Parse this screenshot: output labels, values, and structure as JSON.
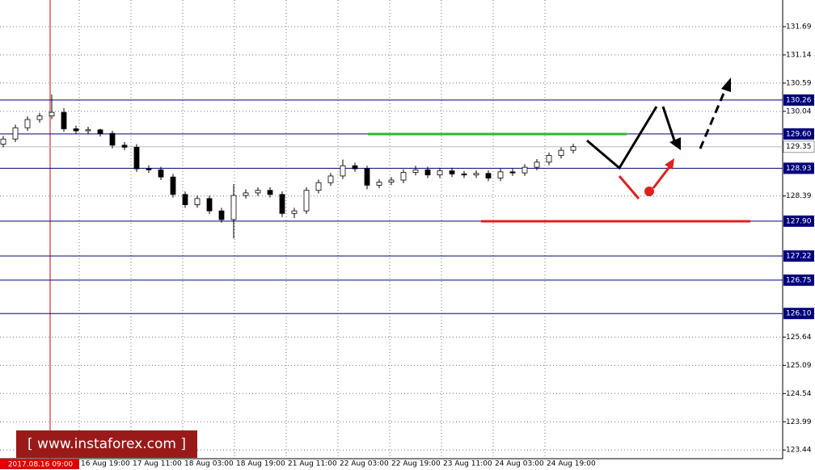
{
  "chart_data": {
    "type": "candlestick",
    "ylim": [
      123.27,
      132.21
    ],
    "yticks": [
      131.69,
      131.14,
      130.59,
      130.04,
      128.39,
      125.64,
      125.09,
      124.54,
      123.99,
      123.44
    ],
    "grid": true,
    "xlabels": [
      "11:0",
      "16 Aug 19:00",
      "17 Aug 11:00",
      "18 Aug 03:00",
      "18 Aug 19:00",
      "21 Aug 11:00",
      "22 Aug 03:00",
      "22 Aug 19:00",
      "23 Aug 11:00",
      "24 Aug 03:00",
      "24 Aug 19:00"
    ],
    "marker_label": "2017.08.16 09:00",
    "watermark": "[ www.instaforex.com ]",
    "current_price": 129.35,
    "levels": [
      130.26,
      {
        "value": 129.6,
        "label": "129.60"
      },
      128.93,
      {
        "value": 127.9,
        "label": "127.90"
      },
      127.22,
      126.75,
      {
        "value": 126.1,
        "label": "126.10"
      }
    ],
    "open": [
      129.4,
      129.5,
      129.72,
      129.88,
      129.95,
      130.02,
      129.7,
      129.66,
      129.68,
      129.61,
      129.38,
      129.34,
      128.92,
      128.9,
      128.76,
      128.42,
      128.22,
      128.34,
      128.1,
      127.93,
      128.4,
      128.45,
      128.5,
      128.42,
      128.05,
      128.1,
      128.5,
      128.65,
      128.78,
      128.98,
      128.92,
      128.6,
      128.66,
      128.7,
      128.85,
      128.9,
      128.8,
      128.88,
      128.82,
      128.8,
      128.83,
      128.74,
      128.86,
      128.84,
      128.95,
      129.05,
      129.18,
      129.28
    ],
    "close": [
      129.5,
      129.72,
      129.88,
      129.95,
      130.02,
      129.7,
      129.66,
      129.68,
      129.61,
      129.38,
      129.34,
      128.92,
      128.9,
      128.76,
      128.42,
      128.22,
      128.34,
      128.1,
      127.93,
      128.4,
      128.45,
      128.5,
      128.42,
      128.05,
      128.1,
      128.5,
      128.65,
      128.78,
      128.98,
      128.92,
      128.6,
      128.66,
      128.7,
      128.85,
      128.9,
      128.8,
      128.88,
      128.82,
      128.8,
      128.83,
      128.74,
      128.86,
      128.84,
      128.95,
      129.05,
      129.18,
      129.28,
      129.35
    ],
    "high": [
      129.56,
      129.78,
      129.94,
      130.01,
      130.37,
      130.1,
      129.76,
      129.74,
      129.7,
      129.66,
      129.44,
      129.4,
      128.99,
      128.96,
      128.82,
      128.48,
      128.4,
      128.4,
      128.16,
      128.62,
      128.52,
      128.56,
      128.56,
      128.48,
      128.16,
      128.56,
      128.71,
      128.84,
      129.1,
      129.04,
      128.98,
      128.72,
      128.76,
      128.91,
      128.98,
      128.96,
      128.94,
      128.94,
      128.88,
      128.89,
      128.89,
      128.92,
      128.92,
      129.01,
      129.11,
      129.24,
      129.34,
      129.41
    ],
    "low": [
      129.34,
      129.44,
      129.66,
      129.82,
      129.89,
      129.64,
      129.6,
      129.6,
      129.55,
      129.32,
      129.28,
      128.86,
      128.84,
      128.7,
      128.36,
      128.16,
      128.16,
      128.04,
      127.87,
      127.56,
      128.34,
      128.39,
      128.36,
      127.98,
      127.96,
      128.04,
      128.44,
      128.59,
      128.72,
      128.86,
      128.52,
      128.54,
      128.6,
      128.64,
      128.79,
      128.74,
      128.74,
      128.76,
      128.74,
      128.74,
      128.68,
      128.68,
      128.78,
      128.78,
      128.89,
      128.99,
      129.12,
      129.22
    ]
  }
}
